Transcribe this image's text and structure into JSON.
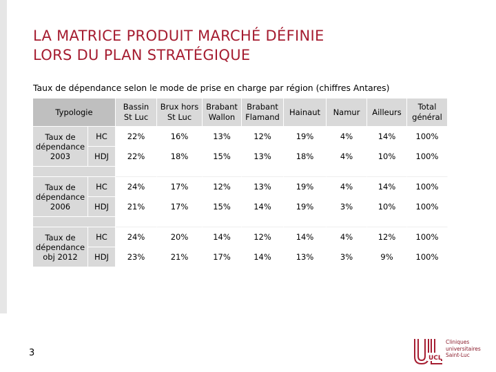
{
  "slide": {
    "title_line1": "LA MATRICE PRODUIT MARCHÉ DÉFINIE",
    "title_line2": "LORS DU PLAN STRATÉGIQUE",
    "subtitle": "Taux de dépendance selon le mode de prise en charge par région (chiffres Antares)",
    "page_number": "3"
  },
  "table": {
    "typology_label": "Typologie",
    "columns": [
      [
        "Bassin",
        "St Luc"
      ],
      [
        "Brux hors",
        "St Luc"
      ],
      [
        "Brabant",
        "Wallon"
      ],
      [
        "Brabant",
        "Flamand"
      ],
      [
        "Hainaut"
      ],
      [
        "Namur"
      ],
      [
        "Ailleurs"
      ],
      [
        "Total",
        "général"
      ]
    ],
    "groups": [
      {
        "label": [
          "Taux de",
          "dépendance",
          "2003"
        ],
        "rows": [
          {
            "mode": "HC",
            "values": [
              "22%",
              "16%",
              "13%",
              "12%",
              "19%",
              "4%",
              "14%",
              "100%"
            ]
          },
          {
            "mode": "HDJ",
            "values": [
              "22%",
              "18%",
              "15%",
              "13%",
              "18%",
              "4%",
              "10%",
              "100%"
            ]
          }
        ]
      },
      {
        "label": [
          "Taux de",
          "dépendance",
          "2006"
        ],
        "rows": [
          {
            "mode": "HC",
            "values": [
              "24%",
              "17%",
              "12%",
              "13%",
              "19%",
              "4%",
              "14%",
              "100%"
            ]
          },
          {
            "mode": "HDJ",
            "values": [
              "21%",
              "17%",
              "15%",
              "14%",
              "19%",
              "3%",
              "10%",
              "100%"
            ]
          }
        ]
      },
      {
        "label": [
          "Taux de",
          "dépendance",
          "obj 2012"
        ],
        "rows": [
          {
            "mode": "HC",
            "values": [
              "24%",
              "20%",
              "14%",
              "12%",
              "14%",
              "4%",
              "12%",
              "100%"
            ]
          },
          {
            "mode": "HDJ",
            "values": [
              "23%",
              "21%",
              "17%",
              "14%",
              "13%",
              "3%",
              "9%",
              "100%"
            ]
          }
        ]
      }
    ]
  },
  "logo": {
    "text": [
      "Cliniques",
      "universitaires",
      "Saint-Luc"
    ],
    "abbr": "UCL",
    "brand_color": "#a51c30"
  }
}
